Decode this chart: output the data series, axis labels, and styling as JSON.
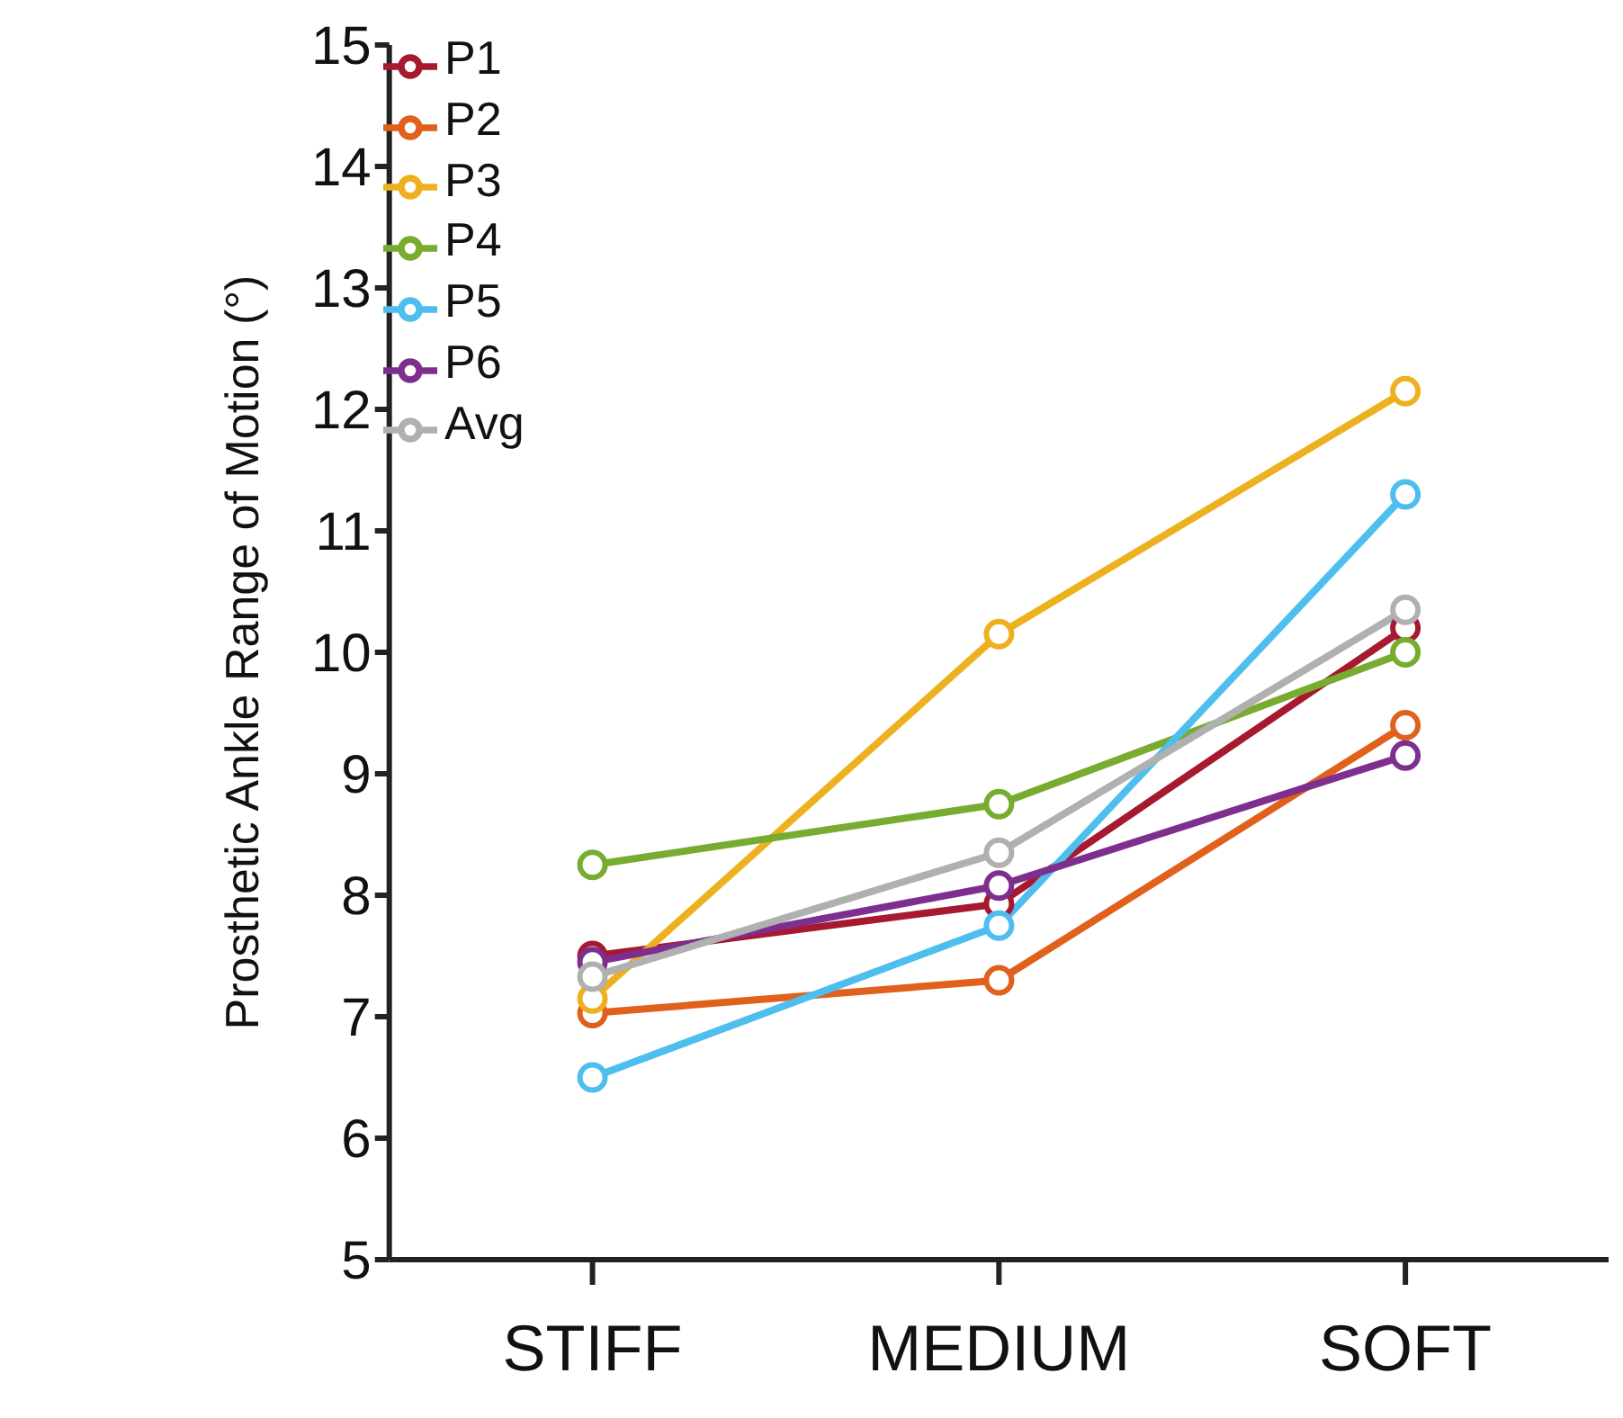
{
  "chart_data": {
    "type": "line",
    "ylabel": "Prosthetic Ankle Range of Motion (°)",
    "categories": [
      "STIFF",
      "MEDIUM",
      "SOFT"
    ],
    "series": [
      {
        "name": "P1",
        "color": "#a6192e",
        "values": [
          7.5,
          7.93,
          10.2
        ]
      },
      {
        "name": "P2",
        "color": "#e0601c",
        "values": [
          7.03,
          7.3,
          9.4
        ]
      },
      {
        "name": "P3",
        "color": "#edb120",
        "values": [
          7.15,
          10.15,
          12.15
        ]
      },
      {
        "name": "P4",
        "color": "#77ac30",
        "values": [
          8.25,
          8.75,
          10.0
        ]
      },
      {
        "name": "P5",
        "color": "#4dbeee",
        "values": [
          6.5,
          7.75,
          11.3
        ]
      },
      {
        "name": "P6",
        "color": "#7e2f8e",
        "values": [
          7.45,
          8.08,
          9.15
        ]
      },
      {
        "name": "Avg",
        "color": "#b0b0b0",
        "values": [
          7.33,
          8.35,
          10.35
        ]
      }
    ],
    "ylim": [
      5,
      15
    ],
    "yticks": [
      5,
      6,
      7,
      8,
      9,
      10,
      11,
      12,
      13,
      14,
      15
    ],
    "grid": false,
    "legend": "top left",
    "marker": "circle",
    "line_style": "solid"
  }
}
